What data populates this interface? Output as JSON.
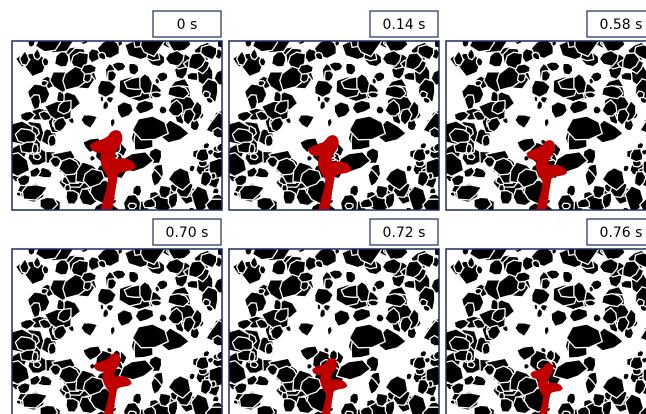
{
  "panels": [
    {
      "label": "0 s"
    },
    {
      "label": "0.14 s"
    },
    {
      "label": "0.58 s"
    },
    {
      "label": "0.70 s"
    },
    {
      "label": "0.72 s"
    },
    {
      "label": "0.76 s"
    }
  ]
}
